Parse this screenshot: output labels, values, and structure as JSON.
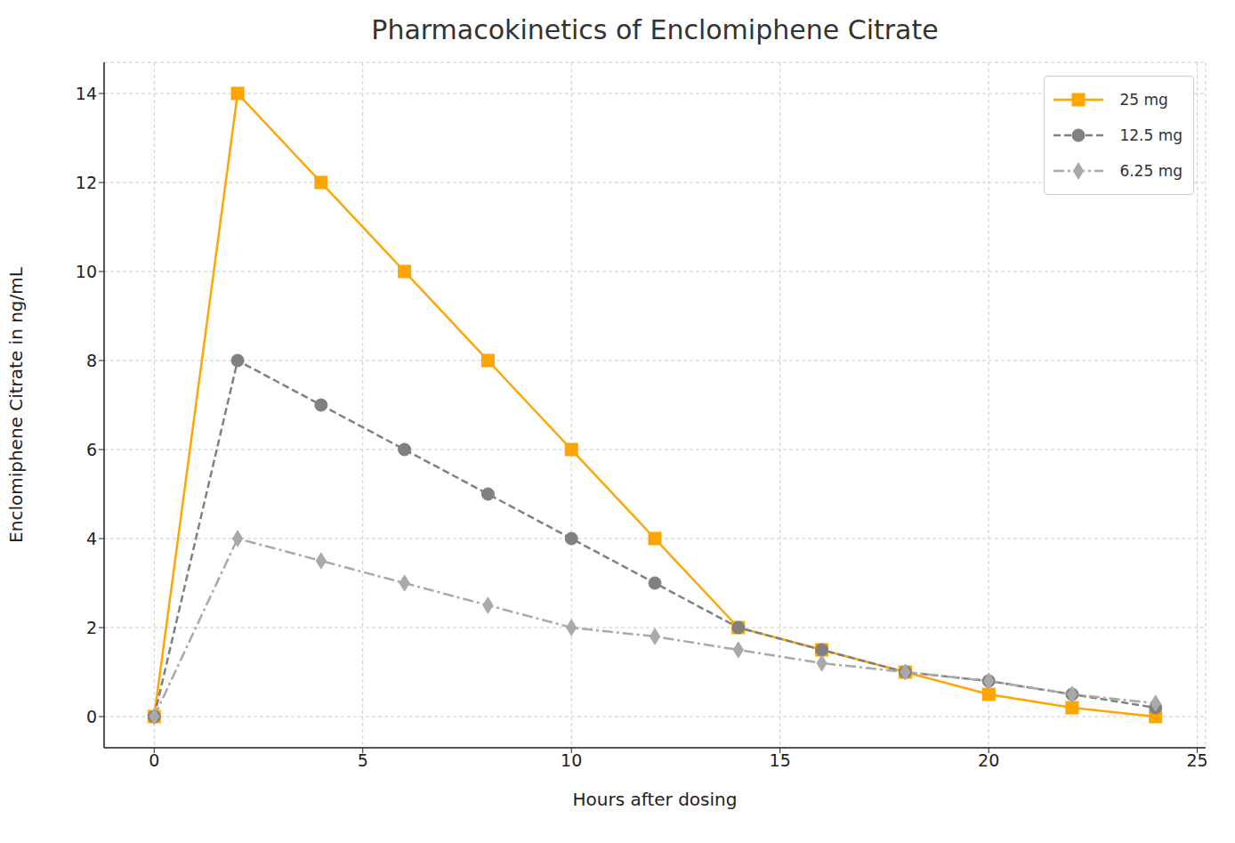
{
  "chart_data": {
    "type": "line",
    "title": "Pharmacokinetics of Enclomiphene Citrate",
    "x_label": "Hours after dosing",
    "y_label": "Enclomiphene Citrate in ng/mL",
    "x": [
      0,
      2,
      4,
      6,
      8,
      10,
      12,
      14,
      16,
      18,
      20,
      22,
      24
    ],
    "series": [
      {
        "name": "25 mg",
        "color": "#ffa500",
        "marker": "square",
        "line_style": "solid",
        "values": [
          0,
          14,
          12,
          10,
          8,
          6,
          4,
          2,
          1.5,
          1,
          0.5,
          0.2,
          0
        ]
      },
      {
        "name": "12.5 mg",
        "color": "#808080",
        "marker": "circle",
        "line_style": "dashed",
        "values": [
          0,
          8,
          7,
          6,
          5,
          4,
          3,
          2,
          1.5,
          1,
          0.8,
          0.5,
          0.2
        ]
      },
      {
        "name": "6.25 mg",
        "color": "#a9a9a9",
        "marker": "diamond",
        "line_style": "dashdot",
        "values": [
          0,
          4,
          3.5,
          3,
          2.5,
          2,
          1.8,
          1.5,
          1.2,
          1,
          0.8,
          0.5,
          0.3
        ]
      }
    ],
    "xlim": [
      -1.2,
      25.2
    ],
    "ylim": [
      -0.7,
      14.7
    ],
    "xticks": [
      0,
      5,
      10,
      15,
      20,
      25
    ],
    "yticks": [
      0,
      2,
      4,
      6,
      8,
      10,
      12,
      14
    ],
    "grid": true,
    "legend": "upper right"
  }
}
